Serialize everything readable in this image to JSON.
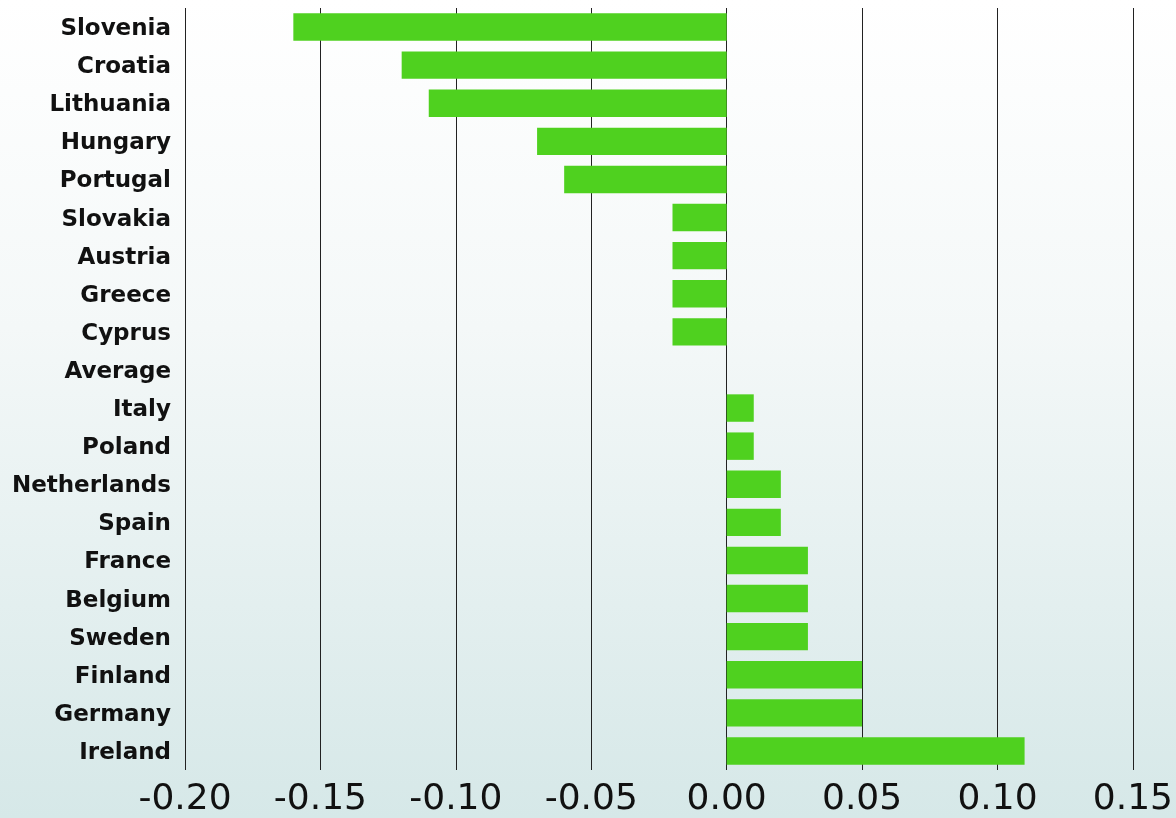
{
  "chart_data": {
    "type": "bar",
    "orientation": "horizontal",
    "categories": [
      "Slovenia",
      "Croatia",
      "Lithuania",
      "Hungary",
      "Portugal",
      "Slovakia",
      "Austria",
      "Greece",
      "Cyprus",
      "Average",
      "Italy",
      "Poland",
      "Netherlands",
      "Spain",
      "France",
      "Belgium",
      "Sweden",
      "Finland",
      "Germany",
      "Ireland"
    ],
    "values": [
      -0.16,
      -0.12,
      -0.11,
      -0.07,
      -0.06,
      -0.02,
      -0.02,
      -0.02,
      -0.02,
      0,
      0.01,
      0.01,
      0.02,
      0.02,
      0.03,
      0.03,
      0.03,
      0.05,
      0.05,
      0.11
    ],
    "color": "#4fd11f",
    "xlim": [
      -0.2,
      0.15
    ],
    "xticks": [
      {
        "value": -0.2,
        "label": "-0.20"
      },
      {
        "value": -0.15,
        "label": "-0.15"
      },
      {
        "value": -0.1,
        "label": "-0.10"
      },
      {
        "value": -0.05,
        "label": "-0.05"
      },
      {
        "value": 0,
        "label": "0.00"
      },
      {
        "value": 0.05,
        "label": "0.05"
      },
      {
        "value": 0.1,
        "label": "0.10"
      },
      {
        "value": 0.15,
        "label": "0.15"
      }
    ],
    "grid": "x"
  }
}
